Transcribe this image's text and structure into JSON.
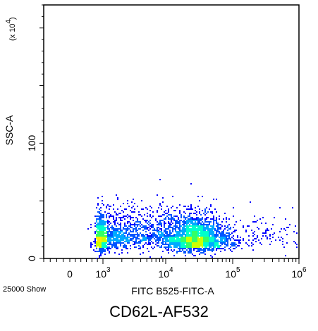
{
  "chart_data": {
    "type": "scatter",
    "style": "density-dot-plot",
    "xlabel": "FITC B525-FITC-A",
    "ylabel": "SSC-A",
    "y_multiplier": "(x 10",
    "y_multiplier_exp": "4",
    "y_multiplier_close": ")",
    "x_scale": "biexponential",
    "x_ticks": [
      {
        "base": "0",
        "exp": "",
        "value": 0
      },
      {
        "base": "10",
        "exp": "3",
        "value": 1000
      },
      {
        "base": "10",
        "exp": "4",
        "value": 10000
      },
      {
        "base": "10",
        "exp": "5",
        "value": 100000
      },
      {
        "base": "10",
        "exp": "6",
        "value": 1000000
      }
    ],
    "y_ticks": [
      {
        "label": "0",
        "value": 0
      },
      {
        "label": "100",
        "value": 100
      }
    ],
    "ylim": [
      0,
      220
    ],
    "xlim_log": [
      -0.4,
      6
    ],
    "event_count_label": "25000 Show",
    "caption": "CD62L-AF532",
    "populations": [
      {
        "x_center_log": 2.85,
        "x_spread_log": 0.3,
        "y_center": 18,
        "y_spread": 8,
        "weight": 0.22
      },
      {
        "x_center_log": 4.45,
        "x_spread_log": 0.22,
        "y_center": 17,
        "y_spread": 8,
        "weight": 0.48
      },
      {
        "x_center_log": 3.7,
        "x_spread_log": 0.55,
        "y_center": 22,
        "y_spread": 10,
        "weight": 0.26
      },
      {
        "x_center_log": 5.3,
        "x_spread_log": 0.45,
        "y_center": 18,
        "y_spread": 8,
        "weight": 0.04
      }
    ],
    "colors": [
      "#0000ff",
      "#0055ff",
      "#00aaff",
      "#00ffcc",
      "#33ff66",
      "#ccff00",
      "#ffee00"
    ]
  }
}
